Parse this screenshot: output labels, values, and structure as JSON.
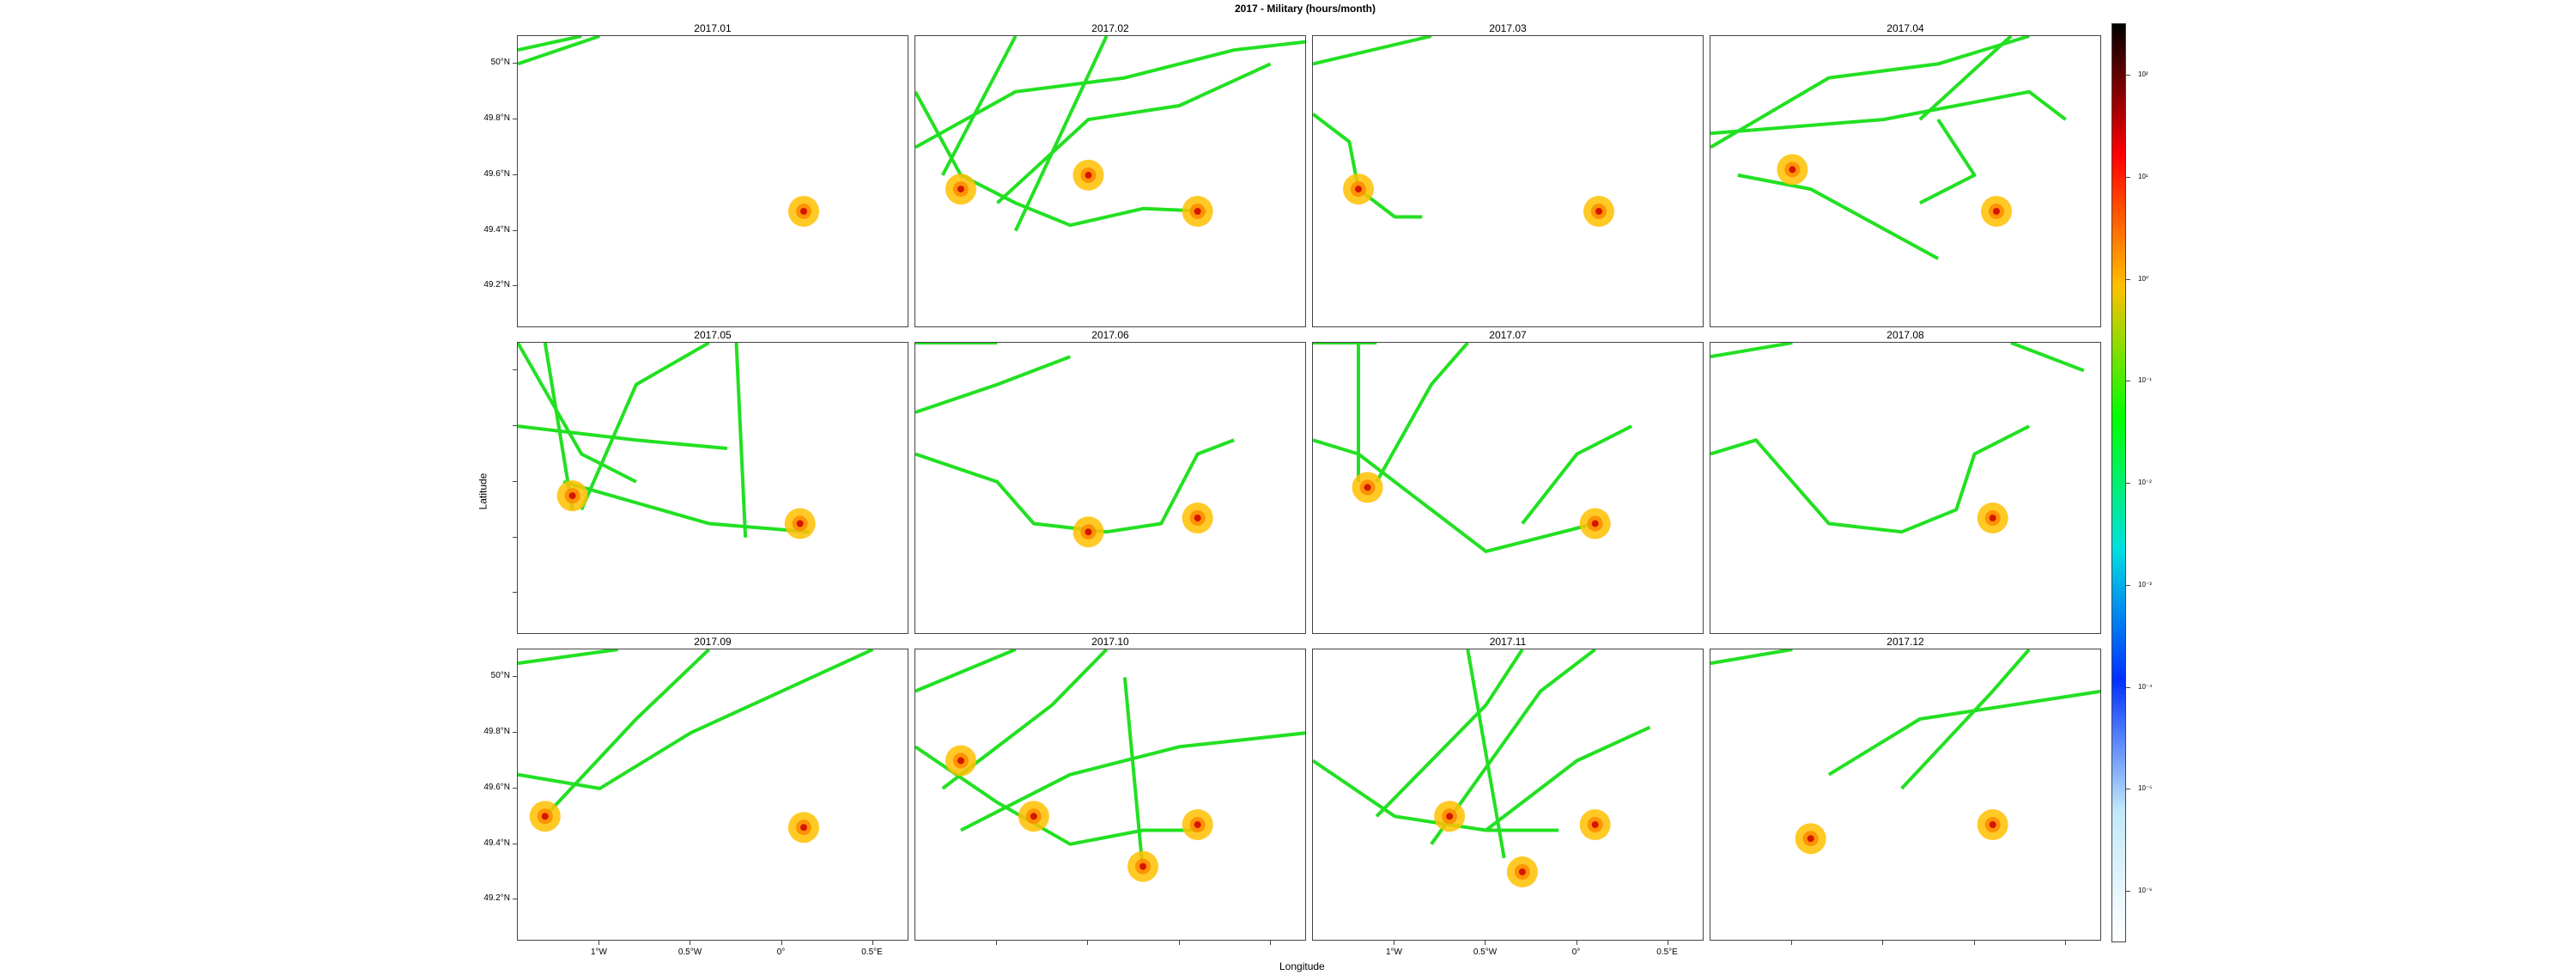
{
  "title": "2017 - Military (hours/month)",
  "chart_data": {
    "type": "heatmap",
    "title": "2017 - Military (hours/month)",
    "xlabel": "Longitude",
    "ylabel": "Latitude",
    "xlim": [
      -1.45,
      0.7
    ],
    "ylim": [
      49.05,
      50.1
    ],
    "x_ticks": [
      -1,
      -0.5,
      0,
      0.5
    ],
    "x_tick_labels": [
      "1°W",
      "0.5°W",
      "0°",
      "0.5°E"
    ],
    "y_ticks": [
      50.0,
      49.8,
      49.6,
      49.4,
      49.2
    ],
    "y_tick_labels": [
      "50°N",
      "49.8°N",
      "49.6°N",
      "49.4°N",
      "49.2°N"
    ],
    "colorbar": {
      "scale": "log",
      "ticks": [
        "10²",
        "10¹",
        "10⁰",
        "10⁻¹",
        "10⁻²",
        "10⁻³",
        "10⁻⁴",
        "10⁻⁵",
        "10⁻⁶"
      ],
      "colors_top_to_bottom": [
        "#000000",
        "#ff0000",
        "#ffc000",
        "#00ff00",
        "#00e0e0",
        "#0030ff",
        "#c0e8f8",
        "#ffffff"
      ]
    },
    "panels": [
      {
        "label": "2017.01",
        "tracks": [
          [
            [
              -1.45,
              50.05
            ],
            [
              -1.1,
              50.1
            ]
          ],
          [
            [
              -1.45,
              50.0
            ],
            [
              -1.0,
              50.1
            ]
          ]
        ],
        "hotspots": [
          [
            0.12,
            49.47
          ]
        ]
      },
      {
        "label": "2017.02",
        "tracks": [
          [
            [
              -1.45,
              49.9
            ],
            [
              -1.2,
              49.6
            ],
            [
              -0.9,
              49.5
            ],
            [
              -0.6,
              49.42
            ],
            [
              -0.2,
              49.48
            ],
            [
              0.15,
              49.47
            ]
          ],
          [
            [
              -1.45,
              49.7
            ],
            [
              -0.9,
              49.9
            ],
            [
              -0.3,
              49.95
            ],
            [
              0.3,
              50.05
            ],
            [
              0.7,
              50.08
            ]
          ],
          [
            [
              -1.3,
              49.6
            ],
            [
              -0.9,
              50.1
            ]
          ],
          [
            [
              -0.9,
              49.4
            ],
            [
              -0.4,
              50.1
            ]
          ],
          [
            [
              -1.0,
              49.5
            ],
            [
              -0.5,
              49.8
            ],
            [
              0.0,
              49.85
            ],
            [
              0.5,
              50.0
            ]
          ]
        ],
        "hotspots": [
          [
            -0.5,
            49.6
          ],
          [
            -1.2,
            49.55
          ],
          [
            0.1,
            49.47
          ]
        ]
      },
      {
        "label": "2017.03",
        "tracks": [
          [
            [
              -1.45,
              50.0
            ],
            [
              -0.8,
              50.1
            ]
          ],
          [
            [
              -1.45,
              49.82
            ],
            [
              -1.25,
              49.72
            ],
            [
              -1.2,
              49.55
            ],
            [
              -1.0,
              49.45
            ],
            [
              -0.85,
              49.45
            ]
          ]
        ],
        "hotspots": [
          [
            0.12,
            49.47
          ],
          [
            -1.2,
            49.55
          ]
        ]
      },
      {
        "label": "2017.04",
        "tracks": [
          [
            [
              -1.45,
              49.7
            ],
            [
              -0.8,
              49.95
            ],
            [
              -0.2,
              50.0
            ],
            [
              0.3,
              50.1
            ]
          ],
          [
            [
              -1.45,
              49.75
            ],
            [
              -0.5,
              49.8
            ],
            [
              0.3,
              49.9
            ],
            [
              0.5,
              49.8
            ]
          ],
          [
            [
              -1.3,
              49.6
            ],
            [
              -0.9,
              49.55
            ],
            [
              -0.2,
              49.3
            ]
          ],
          [
            [
              -0.2,
              49.8
            ],
            [
              0.0,
              49.6
            ],
            [
              -0.3,
              49.5
            ]
          ],
          [
            [
              0.2,
              50.1
            ],
            [
              -0.3,
              49.8
            ]
          ]
        ],
        "hotspots": [
          [
            -1.0,
            49.62
          ],
          [
            0.12,
            49.47
          ]
        ]
      },
      {
        "label": "2017.05",
        "tracks": [
          [
            [
              -1.45,
              50.1
            ],
            [
              -1.1,
              49.7
            ],
            [
              -0.8,
              49.6
            ]
          ],
          [
            [
              -1.3,
              50.1
            ],
            [
              -1.15,
              49.5
            ]
          ],
          [
            [
              -1.1,
              49.5
            ],
            [
              -0.8,
              49.95
            ],
            [
              -0.4,
              50.1
            ]
          ],
          [
            [
              -1.45,
              49.8
            ],
            [
              -0.8,
              49.75
            ],
            [
              -0.3,
              49.72
            ]
          ],
          [
            [
              -1.2,
              49.6
            ],
            [
              -0.4,
              49.45
            ],
            [
              0.15,
              49.42
            ]
          ],
          [
            [
              -0.25,
              50.1
            ],
            [
              -0.2,
              49.4
            ]
          ]
        ],
        "hotspots": [
          [
            -1.15,
            49.55
          ],
          [
            0.1,
            49.45
          ]
        ]
      },
      {
        "label": "2017.06",
        "tracks": [
          [
            [
              -1.45,
              50.1
            ],
            [
              -1.0,
              50.1
            ]
          ],
          [
            [
              -1.45,
              49.85
            ],
            [
              -1.0,
              49.95
            ],
            [
              -0.6,
              50.05
            ]
          ],
          [
            [
              -1.45,
              49.7
            ],
            [
              -1.0,
              49.6
            ],
            [
              -0.8,
              49.45
            ],
            [
              -0.4,
              49.42
            ],
            [
              -0.1,
              49.45
            ],
            [
              0.1,
              49.7
            ],
            [
              0.3,
              49.75
            ]
          ]
        ],
        "hotspots": [
          [
            0.1,
            49.47
          ],
          [
            -0.5,
            49.42
          ]
        ]
      },
      {
        "label": "2017.07",
        "tracks": [
          [
            [
              -1.45,
              50.1
            ],
            [
              -1.1,
              50.1
            ]
          ],
          [
            [
              -1.45,
              49.75
            ],
            [
              -1.2,
              49.7
            ],
            [
              -1.0,
              49.6
            ],
            [
              -0.7,
              49.45
            ],
            [
              -0.5,
              49.35
            ],
            [
              0.1,
              49.45
            ]
          ],
          [
            [
              -1.1,
              49.6
            ],
            [
              -0.8,
              49.95
            ],
            [
              -0.6,
              50.1
            ]
          ],
          [
            [
              -0.3,
              49.45
            ],
            [
              0.0,
              49.7
            ],
            [
              0.3,
              49.8
            ]
          ],
          [
            [
              -1.2,
              49.6
            ],
            [
              -1.2,
              50.1
            ]
          ]
        ],
        "hotspots": [
          [
            0.1,
            49.45
          ],
          [
            -1.15,
            49.58
          ]
        ]
      },
      {
        "label": "2017.08",
        "tracks": [
          [
            [
              -1.45,
              50.05
            ],
            [
              -1.0,
              50.1
            ]
          ],
          [
            [
              -1.45,
              49.7
            ],
            [
              -1.2,
              49.75
            ],
            [
              -1.0,
              49.6
            ],
            [
              -0.8,
              49.45
            ],
            [
              -0.4,
              49.42
            ],
            [
              -0.1,
              49.5
            ],
            [
              0.0,
              49.7
            ],
            [
              0.3,
              49.8
            ]
          ],
          [
            [
              0.2,
              50.1
            ],
            [
              0.6,
              50.0
            ]
          ]
        ],
        "hotspots": [
          [
            0.1,
            49.47
          ]
        ]
      },
      {
        "label": "2017.09",
        "tracks": [
          [
            [
              -1.45,
              50.05
            ],
            [
              -0.9,
              50.1
            ]
          ],
          [
            [
              -1.45,
              49.65
            ],
            [
              -1.0,
              49.6
            ],
            [
              -0.5,
              49.8
            ],
            [
              0.0,
              49.95
            ],
            [
              0.5,
              50.1
            ]
          ],
          [
            [
              -1.3,
              49.5
            ],
            [
              -0.8,
              49.85
            ],
            [
              -0.4,
              50.1
            ]
          ]
        ],
        "hotspots": [
          [
            0.12,
            49.46
          ],
          [
            -1.3,
            49.5
          ]
        ]
      },
      {
        "label": "2017.10",
        "tracks": [
          [
            [
              -1.45,
              49.95
            ],
            [
              -0.9,
              50.1
            ]
          ],
          [
            [
              -1.45,
              49.75
            ],
            [
              -1.0,
              49.55
            ],
            [
              -0.6,
              49.4
            ],
            [
              -0.2,
              49.45
            ],
            [
              0.1,
              49.45
            ]
          ],
          [
            [
              -1.3,
              49.6
            ],
            [
              -0.7,
              49.9
            ],
            [
              -0.4,
              50.1
            ]
          ],
          [
            [
              -1.2,
              49.45
            ],
            [
              -0.6,
              49.65
            ],
            [
              0.0,
              49.75
            ],
            [
              0.7,
              49.8
            ]
          ],
          [
            [
              -0.2,
              49.3
            ],
            [
              -0.3,
              50.0
            ]
          ]
        ],
        "hotspots": [
          [
            -0.8,
            49.5
          ],
          [
            -1.2,
            49.7
          ],
          [
            0.1,
            49.47
          ],
          [
            -0.2,
            49.32
          ]
        ]
      },
      {
        "label": "2017.11",
        "tracks": [
          [
            [
              -1.45,
              49.7
            ],
            [
              -1.0,
              49.5
            ],
            [
              -0.5,
              49.45
            ],
            [
              -0.1,
              49.45
            ]
          ],
          [
            [
              -1.1,
              49.5
            ],
            [
              -0.5,
              49.9
            ],
            [
              -0.3,
              50.1
            ]
          ],
          [
            [
              -0.8,
              49.4
            ],
            [
              -0.2,
              49.95
            ],
            [
              0.1,
              50.1
            ]
          ],
          [
            [
              -0.5,
              49.45
            ],
            [
              0.0,
              49.7
            ],
            [
              0.4,
              49.82
            ]
          ],
          [
            [
              -0.4,
              49.35
            ],
            [
              -0.6,
              50.1
            ]
          ]
        ],
        "hotspots": [
          [
            -0.7,
            49.5
          ],
          [
            -0.3,
            49.3
          ],
          [
            0.1,
            49.47
          ]
        ]
      },
      {
        "label": "2017.12",
        "tracks": [
          [
            [
              -1.45,
              50.05
            ],
            [
              -1.0,
              50.1
            ]
          ],
          [
            [
              -0.8,
              49.65
            ],
            [
              -0.3,
              49.85
            ],
            [
              0.2,
              49.9
            ],
            [
              0.7,
              49.95
            ]
          ],
          [
            [
              -0.4,
              49.6
            ],
            [
              0.1,
              49.95
            ],
            [
              0.3,
              50.1
            ]
          ]
        ],
        "hotspots": [
          [
            0.1,
            49.47
          ],
          [
            -0.9,
            49.42
          ]
        ]
      }
    ]
  }
}
